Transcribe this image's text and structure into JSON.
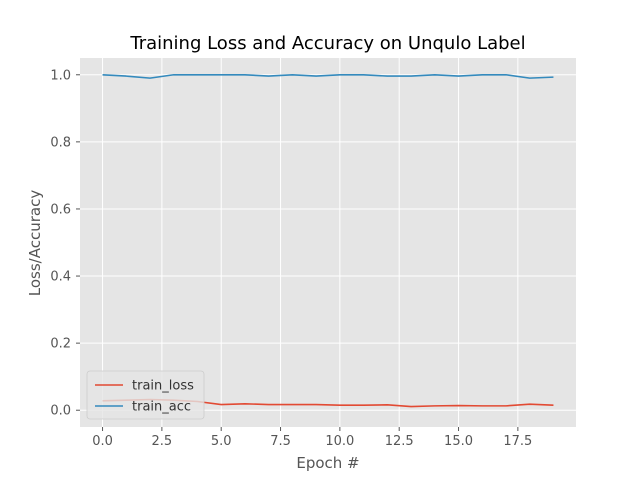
{
  "chart_data": {
    "type": "line",
    "title": "Training Loss and Accuracy on Unqulo Label",
    "xlabel": "Epoch #",
    "ylabel": "Loss/Accuracy",
    "xlim": [
      -0.95,
      19.95
    ],
    "ylim": [
      -0.05,
      1.05
    ],
    "xticks": [
      0.0,
      2.5,
      5.0,
      7.5,
      10.0,
      12.5,
      15.0,
      17.5
    ],
    "xtick_labels": [
      "0.0",
      "2.5",
      "5.0",
      "7.5",
      "10.0",
      "12.5",
      "15.0",
      "17.5"
    ],
    "yticks": [
      0.0,
      0.2,
      0.4,
      0.6,
      0.8,
      1.0
    ],
    "ytick_labels": [
      "0.0",
      "0.2",
      "0.4",
      "0.6",
      "0.8",
      "1.0"
    ],
    "grid": true,
    "legend_position": "lower-left",
    "x": [
      0,
      1,
      2,
      3,
      4,
      5,
      6,
      7,
      8,
      9,
      10,
      11,
      12,
      13,
      14,
      15,
      16,
      17,
      18,
      19
    ],
    "series": [
      {
        "name": "train_loss",
        "color": "#e24a33",
        "values": [
          0.028,
          0.03,
          0.032,
          0.03,
          0.026,
          0.017,
          0.019,
          0.017,
          0.017,
          0.017,
          0.015,
          0.015,
          0.016,
          0.011,
          0.013,
          0.014,
          0.013,
          0.013,
          0.018,
          0.015
        ]
      },
      {
        "name": "train_acc",
        "color": "#348abd",
        "values": [
          1.0,
          0.996,
          0.99,
          1.0,
          1.0,
          1.0,
          1.0,
          0.996,
          1.0,
          0.996,
          1.0,
          1.0,
          0.996,
          0.996,
          1.0,
          0.996,
          1.0,
          1.0,
          0.99,
          0.993
        ]
      }
    ]
  }
}
